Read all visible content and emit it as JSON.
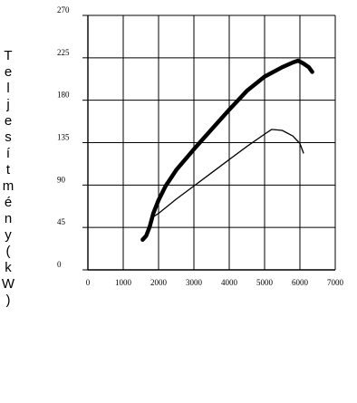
{
  "chart_data": {
    "type": "line",
    "title": "",
    "xlabel": "",
    "ylabel": "Teljesítmény(kW)",
    "xlim": [
      0,
      7000
    ],
    "ylim": [
      0,
      270
    ],
    "x_ticks": [
      "0",
      "1000",
      "2000",
      "3000",
      "4000",
      "5000",
      "6000",
      "7000"
    ],
    "y_ticks": [
      "0",
      "45",
      "90",
      "135",
      "180",
      "225",
      "270"
    ],
    "grid": true,
    "series": [
      {
        "style": "thick",
        "color": "#000000",
        "x": [
          1550,
          1650,
          1750,
          1850,
          2000,
          2200,
          2500,
          3000,
          3500,
          4000,
          4500,
          5000,
          5500,
          5800,
          5950,
          6100,
          6250,
          6350
        ],
        "y": [
          32,
          36,
          46,
          60,
          74,
          89,
          106,
          128,
          149,
          170,
          190,
          205,
          215,
          220,
          222,
          219,
          215,
          210
        ]
      },
      {
        "style": "thin",
        "color": "#000000",
        "x": [
          1800,
          2000,
          2500,
          3000,
          3500,
          4000,
          4500,
          5000,
          5200,
          5500,
          5800,
          6000,
          6100
        ],
        "y": [
          55,
          60,
          75,
          89,
          103,
          117,
          131,
          144,
          149,
          148,
          142,
          134,
          124
        ]
      }
    ]
  }
}
